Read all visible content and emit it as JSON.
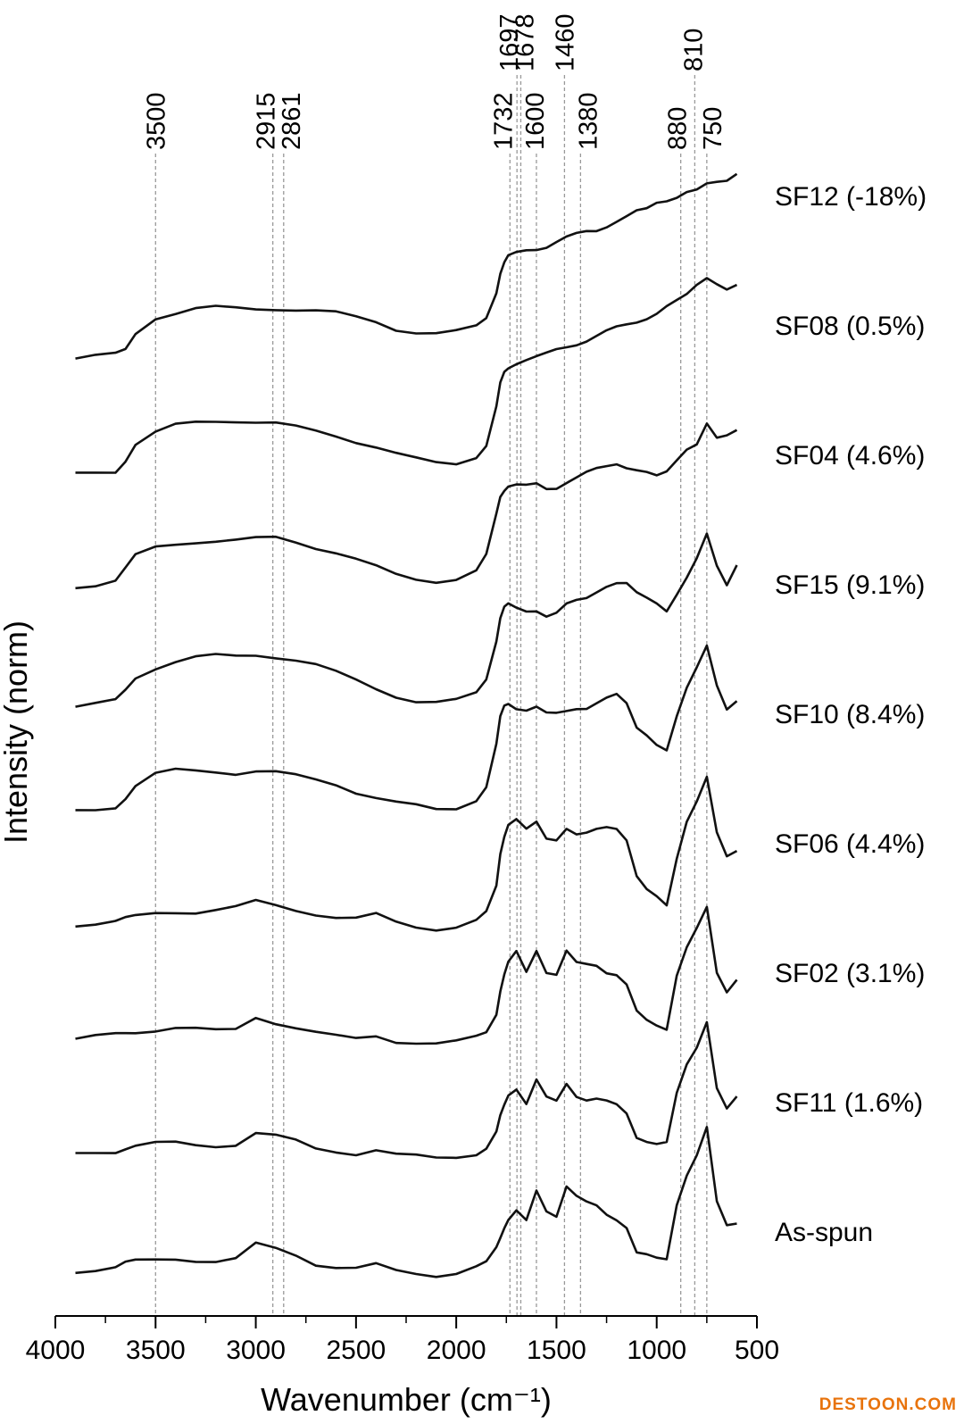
{
  "watermark": "DESTOON.COM",
  "chart_data": {
    "type": "line",
    "title": "",
    "xlabel": "Wavenumber (cm⁻¹)",
    "ylabel": "Intensity (norm)",
    "xlim": [
      4000,
      500
    ],
    "x_ticks": [
      4000,
      3500,
      3000,
      2500,
      2000,
      1500,
      1000,
      500
    ],
    "x_tick_labels": [
      "4000",
      "3500",
      "3000",
      "2500",
      "2000",
      "1500",
      "1000",
      "500"
    ],
    "peak_markers": [
      3500,
      2915,
      2861,
      1732,
      1697,
      1678,
      1600,
      1460,
      1380,
      880,
      810,
      750
    ],
    "peak_marker_labels": [
      "3500",
      "2915",
      "2861",
      "1732",
      "1697",
      "1678",
      "1600",
      "1460",
      "1380",
      "880",
      "810",
      "750"
    ],
    "grid": false,
    "stacked_offsets": true,
    "line_color": "#111111",
    "marker_color": "#999999",
    "series": [
      {
        "name": "SF12 (-18%)",
        "x": [
          3900,
          3800,
          3700,
          3650,
          3600,
          3500,
          3400,
          3300,
          3200,
          3100,
          3000,
          2900,
          2800,
          2700,
          2600,
          2500,
          2400,
          2300,
          2200,
          2100,
          2000,
          1900,
          1850,
          1800,
          1780,
          1760,
          1740,
          1700,
          1650,
          1600,
          1550,
          1500,
          1450,
          1400,
          1350,
          1300,
          1250,
          1200,
          1150,
          1100,
          1050,
          1000,
          950,
          900,
          850,
          800,
          750,
          700,
          650,
          600
        ],
        "y": [
          0.04,
          0.05,
          0.06,
          0.09,
          0.18,
          0.26,
          0.28,
          0.3,
          0.31,
          0.31,
          0.31,
          0.31,
          0.3,
          0.29,
          0.28,
          0.26,
          0.24,
          0.2,
          0.18,
          0.17,
          0.18,
          0.21,
          0.26,
          0.4,
          0.5,
          0.55,
          0.58,
          0.6,
          0.62,
          0.63,
          0.64,
          0.66,
          0.68,
          0.7,
          0.72,
          0.73,
          0.75,
          0.77,
          0.79,
          0.82,
          0.84,
          0.88,
          0.89,
          0.9,
          0.92,
          0.93,
          0.97,
          0.99,
          1.0,
          1.03
        ]
      },
      {
        "name": "SF08 (0.5%)",
        "x": [
          3900,
          3800,
          3700,
          3650,
          3600,
          3500,
          3400,
          3300,
          3200,
          3100,
          3000,
          2900,
          2800,
          2700,
          2600,
          2500,
          2400,
          2300,
          2200,
          2100,
          2000,
          1900,
          1850,
          1800,
          1780,
          1760,
          1740,
          1700,
          1650,
          1600,
          1550,
          1500,
          1450,
          1400,
          1350,
          1300,
          1250,
          1200,
          1150,
          1100,
          1050,
          1000,
          950,
          900,
          850,
          800,
          750,
          700,
          650,
          600
        ],
        "y": [
          0.04,
          0.05,
          0.06,
          0.12,
          0.2,
          0.26,
          0.3,
          0.32,
          0.33,
          0.33,
          0.32,
          0.31,
          0.29,
          0.27,
          0.25,
          0.22,
          0.19,
          0.15,
          0.12,
          0.1,
          0.1,
          0.14,
          0.2,
          0.4,
          0.52,
          0.58,
          0.61,
          0.64,
          0.66,
          0.67,
          0.68,
          0.7,
          0.72,
          0.74,
          0.76,
          0.78,
          0.8,
          0.82,
          0.84,
          0.86,
          0.88,
          0.9,
          0.93,
          0.96,
          1.0,
          1.06,
          1.1,
          1.06,
          1.02,
          1.04
        ]
      },
      {
        "name": "SF04 (4.6%)",
        "x": [
          3900,
          3800,
          3700,
          3650,
          3600,
          3500,
          3400,
          3300,
          3200,
          3100,
          3000,
          2900,
          2800,
          2700,
          2600,
          2500,
          2400,
          2300,
          2200,
          2100,
          2000,
          1900,
          1850,
          1800,
          1780,
          1760,
          1740,
          1700,
          1650,
          1600,
          1550,
          1500,
          1450,
          1400,
          1350,
          1300,
          1250,
          1200,
          1150,
          1100,
          1050,
          1000,
          950,
          900,
          850,
          800,
          750,
          700,
          650,
          600
        ],
        "y": [
          0.04,
          0.05,
          0.07,
          0.13,
          0.2,
          0.25,
          0.27,
          0.28,
          0.28,
          0.28,
          0.29,
          0.3,
          0.28,
          0.25,
          0.22,
          0.18,
          0.14,
          0.1,
          0.08,
          0.07,
          0.08,
          0.12,
          0.2,
          0.42,
          0.52,
          0.56,
          0.58,
          0.58,
          0.57,
          0.58,
          0.56,
          0.57,
          0.6,
          0.62,
          0.64,
          0.66,
          0.68,
          0.7,
          0.68,
          0.66,
          0.64,
          0.62,
          0.65,
          0.72,
          0.78,
          0.8,
          0.9,
          0.82,
          0.84,
          0.88
        ]
      },
      {
        "name": "SF15 (9.1%)",
        "x": [
          3900,
          3800,
          3700,
          3650,
          3600,
          3500,
          3400,
          3300,
          3200,
          3100,
          3000,
          2900,
          2800,
          2700,
          2600,
          2500,
          2400,
          2300,
          2200,
          2100,
          2000,
          1900,
          1850,
          1800,
          1780,
          1760,
          1740,
          1700,
          1650,
          1600,
          1550,
          1500,
          1450,
          1400,
          1350,
          1300,
          1250,
          1200,
          1150,
          1100,
          1050,
          1000,
          950,
          900,
          850,
          800,
          750,
          700,
          650,
          600
        ],
        "y": [
          0.04,
          0.05,
          0.07,
          0.13,
          0.2,
          0.25,
          0.28,
          0.3,
          0.31,
          0.31,
          0.32,
          0.31,
          0.29,
          0.26,
          0.22,
          0.18,
          0.14,
          0.1,
          0.07,
          0.06,
          0.07,
          0.11,
          0.19,
          0.4,
          0.52,
          0.57,
          0.58,
          0.56,
          0.55,
          0.56,
          0.53,
          0.54,
          0.58,
          0.6,
          0.62,
          0.66,
          0.69,
          0.7,
          0.69,
          0.64,
          0.62,
          0.6,
          0.56,
          0.64,
          0.72,
          0.82,
          0.96,
          0.8,
          0.7,
          0.8
        ]
      },
      {
        "name": "SF10 (8.4%)",
        "x": [
          3900,
          3800,
          3700,
          3650,
          3600,
          3500,
          3400,
          3300,
          3200,
          3100,
          3000,
          2900,
          2800,
          2700,
          2600,
          2500,
          2400,
          2300,
          2200,
          2100,
          2000,
          1900,
          1850,
          1800,
          1780,
          1760,
          1740,
          1700,
          1650,
          1600,
          1550,
          1500,
          1450,
          1400,
          1350,
          1300,
          1250,
          1200,
          1150,
          1100,
          1050,
          1000,
          950,
          900,
          850,
          800,
          750,
          700,
          650,
          600
        ],
        "y": [
          0.04,
          0.05,
          0.07,
          0.12,
          0.18,
          0.24,
          0.26,
          0.26,
          0.26,
          0.25,
          0.26,
          0.25,
          0.23,
          0.21,
          0.19,
          0.15,
          0.12,
          0.09,
          0.07,
          0.05,
          0.06,
          0.11,
          0.18,
          0.4,
          0.54,
          0.6,
          0.62,
          0.6,
          0.59,
          0.6,
          0.56,
          0.56,
          0.58,
          0.6,
          0.6,
          0.62,
          0.64,
          0.66,
          0.62,
          0.5,
          0.46,
          0.4,
          0.36,
          0.54,
          0.7,
          0.82,
          0.94,
          0.72,
          0.58,
          0.62
        ]
      },
      {
        "name": "SF06 (4.4%)",
        "x": [
          3900,
          3800,
          3700,
          3650,
          3600,
          3500,
          3400,
          3300,
          3200,
          3100,
          3000,
          2900,
          2800,
          2700,
          2600,
          2500,
          2400,
          2300,
          2200,
          2100,
          2000,
          1900,
          1850,
          1800,
          1780,
          1760,
          1740,
          1700,
          1650,
          1600,
          1550,
          1500,
          1450,
          1400,
          1350,
          1300,
          1250,
          1200,
          1150,
          1100,
          1050,
          1000,
          950,
          900,
          850,
          800,
          750,
          700,
          650,
          600
        ],
        "y": [
          0.04,
          0.05,
          0.06,
          0.07,
          0.08,
          0.1,
          0.11,
          0.11,
          0.12,
          0.13,
          0.16,
          0.14,
          0.12,
          0.1,
          0.08,
          0.07,
          0.09,
          0.05,
          0.03,
          0.02,
          0.03,
          0.06,
          0.1,
          0.24,
          0.42,
          0.52,
          0.58,
          0.6,
          0.54,
          0.58,
          0.5,
          0.5,
          0.56,
          0.52,
          0.52,
          0.54,
          0.56,
          0.56,
          0.5,
          0.3,
          0.22,
          0.18,
          0.14,
          0.4,
          0.6,
          0.7,
          0.82,
          0.52,
          0.4,
          0.44
        ]
      },
      {
        "name": "SF02 (3.1%)",
        "x": [
          3900,
          3800,
          3700,
          3650,
          3600,
          3500,
          3400,
          3300,
          3200,
          3100,
          3000,
          2900,
          2800,
          2700,
          2600,
          2500,
          2400,
          2300,
          2200,
          2100,
          2000,
          1900,
          1850,
          1800,
          1780,
          1760,
          1740,
          1700,
          1650,
          1600,
          1550,
          1500,
          1450,
          1400,
          1350,
          1300,
          1250,
          1200,
          1150,
          1100,
          1050,
          1000,
          950,
          900,
          850,
          800,
          750,
          700,
          650,
          600
        ],
        "y": [
          0.04,
          0.05,
          0.06,
          0.07,
          0.08,
          0.09,
          0.1,
          0.09,
          0.08,
          0.09,
          0.16,
          0.13,
          0.1,
          0.07,
          0.05,
          0.04,
          0.06,
          0.03,
          0.02,
          0.01,
          0.02,
          0.05,
          0.08,
          0.18,
          0.3,
          0.38,
          0.44,
          0.5,
          0.4,
          0.52,
          0.4,
          0.38,
          0.5,
          0.44,
          0.44,
          0.44,
          0.4,
          0.38,
          0.32,
          0.18,
          0.14,
          0.12,
          0.1,
          0.38,
          0.52,
          0.62,
          0.74,
          0.4,
          0.3,
          0.36
        ]
      },
      {
        "name": "SF11 (1.6%)",
        "x": [
          3900,
          3800,
          3700,
          3650,
          3600,
          3500,
          3400,
          3300,
          3200,
          3100,
          3000,
          2900,
          2800,
          2700,
          2600,
          2500,
          2400,
          2300,
          2200,
          2100,
          2000,
          1900,
          1850,
          1800,
          1780,
          1760,
          1740,
          1700,
          1650,
          1600,
          1550,
          1500,
          1450,
          1400,
          1350,
          1300,
          1250,
          1200,
          1150,
          1100,
          1050,
          1000,
          950,
          900,
          850,
          800,
          750,
          700,
          650,
          600
        ],
        "y": [
          0.04,
          0.05,
          0.06,
          0.08,
          0.09,
          0.1,
          0.1,
          0.09,
          0.09,
          0.1,
          0.16,
          0.14,
          0.11,
          0.07,
          0.06,
          0.05,
          0.07,
          0.04,
          0.03,
          0.02,
          0.03,
          0.05,
          0.08,
          0.16,
          0.24,
          0.3,
          0.36,
          0.4,
          0.32,
          0.44,
          0.34,
          0.32,
          0.42,
          0.36,
          0.34,
          0.34,
          0.32,
          0.3,
          0.26,
          0.14,
          0.12,
          0.1,
          0.1,
          0.36,
          0.52,
          0.62,
          0.76,
          0.4,
          0.28,
          0.34
        ]
      },
      {
        "name": "As-spun",
        "x": [
          3900,
          3800,
          3700,
          3650,
          3600,
          3500,
          3400,
          3300,
          3200,
          3100,
          3000,
          2900,
          2800,
          2700,
          2600,
          2500,
          2400,
          2300,
          2200,
          2100,
          2000,
          1900,
          1850,
          1800,
          1780,
          1760,
          1740,
          1700,
          1650,
          1600,
          1550,
          1500,
          1450,
          1400,
          1350,
          1300,
          1250,
          1200,
          1150,
          1100,
          1050,
          1000,
          950,
          900,
          850,
          800,
          750,
          700,
          650,
          600
        ],
        "y": [
          0.04,
          0.05,
          0.06,
          0.08,
          0.09,
          0.1,
          0.11,
          0.1,
          0.09,
          0.1,
          0.18,
          0.16,
          0.13,
          0.08,
          0.06,
          0.05,
          0.07,
          0.04,
          0.03,
          0.02,
          0.03,
          0.06,
          0.08,
          0.16,
          0.22,
          0.28,
          0.32,
          0.36,
          0.3,
          0.46,
          0.36,
          0.34,
          0.5,
          0.44,
          0.4,
          0.38,
          0.34,
          0.32,
          0.28,
          0.14,
          0.12,
          0.1,
          0.1,
          0.4,
          0.56,
          0.66,
          0.8,
          0.4,
          0.28,
          0.3
        ]
      }
    ]
  }
}
